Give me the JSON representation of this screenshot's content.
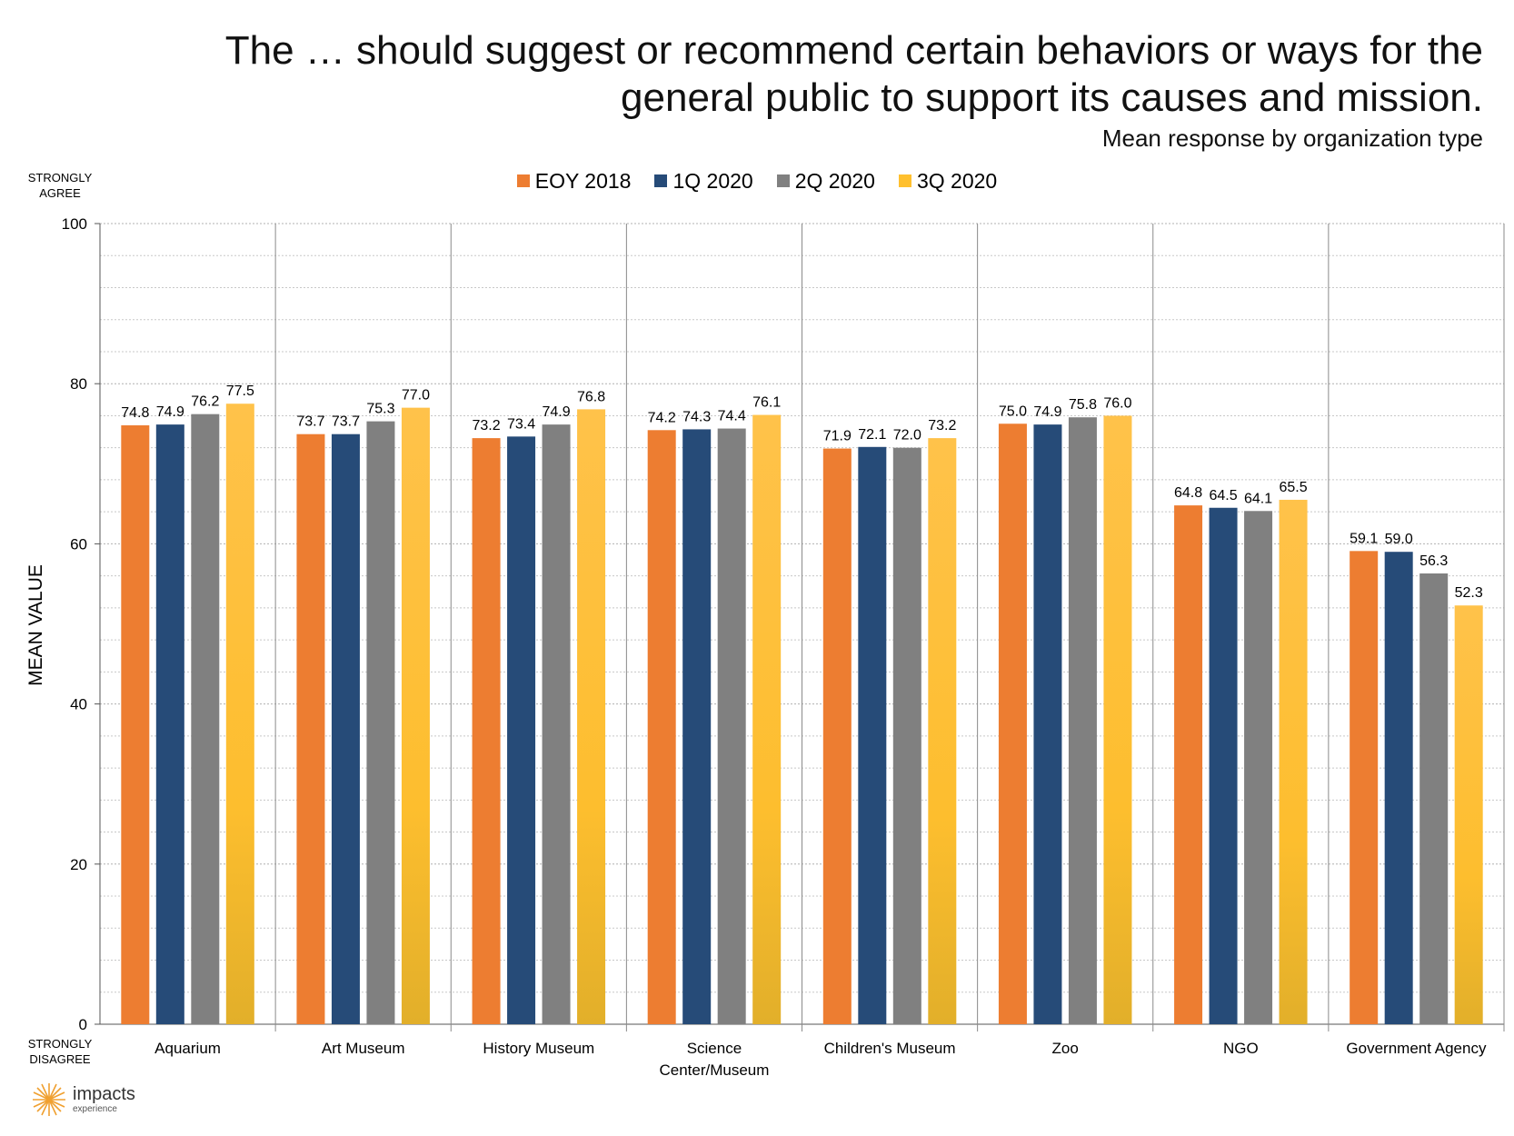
{
  "title": "The … should suggest or recommend certain behaviors or ways for the general public to support its causes and mission.",
  "title_line1": "The … should suggest or recommend certain behaviors or ways for the",
  "title_line2": "general public to support its causes and mission.",
  "subtitle": "Mean response by organization type",
  "y_top_anchor_1": "STRONGLY",
  "y_top_anchor_2": "AGREE",
  "y_bottom_anchor_1": "STRONGLY",
  "y_bottom_anchor_2": "DISAGREE",
  "logo": {
    "name": "impacts",
    "sub": "experience"
  },
  "colors": {
    "EOY 2018": "#ED7D31",
    "1Q 2020": "#264B78",
    "2Q 2020": "#808080",
    "3Q 2020": "#FFC02E"
  },
  "chart_data": {
    "type": "bar",
    "title": "The … should suggest or recommend certain behaviors or ways for the general public to support its causes and mission.",
    "subtitle": "Mean response by organization type",
    "xlabel": "",
    "ylabel": "MEAN VALUE",
    "ylim": [
      0,
      100
    ],
    "yticks": [
      0,
      20,
      40,
      60,
      80,
      100
    ],
    "grid": true,
    "legend_position": "top-center",
    "categories": [
      "Aquarium",
      "Art Museum",
      "History Museum",
      "Science Center/Museum",
      "Children's Museum",
      "Zoo",
      "NGO",
      "Government Agency"
    ],
    "category_lines": [
      [
        "Aquarium"
      ],
      [
        "Art Museum"
      ],
      [
        "History Museum"
      ],
      [
        "Science",
        "Center/Museum"
      ],
      [
        "Children's Museum"
      ],
      [
        "Zoo"
      ],
      [
        "NGO"
      ],
      [
        "Government Agency"
      ]
    ],
    "series": [
      {
        "name": "EOY 2018",
        "values": [
          74.8,
          73.7,
          73.2,
          74.2,
          71.9,
          75.0,
          64.8,
          59.1
        ]
      },
      {
        "name": "1Q 2020",
        "values": [
          74.9,
          73.7,
          73.4,
          74.3,
          72.1,
          74.9,
          64.5,
          59.0
        ]
      },
      {
        "name": "2Q 2020",
        "values": [
          76.2,
          75.3,
          74.9,
          74.4,
          72.0,
          75.8,
          64.1,
          56.3
        ]
      },
      {
        "name": "3Q 2020",
        "values": [
          77.5,
          77.0,
          76.8,
          76.1,
          73.2,
          76.0,
          65.5,
          52.3
        ]
      }
    ]
  }
}
